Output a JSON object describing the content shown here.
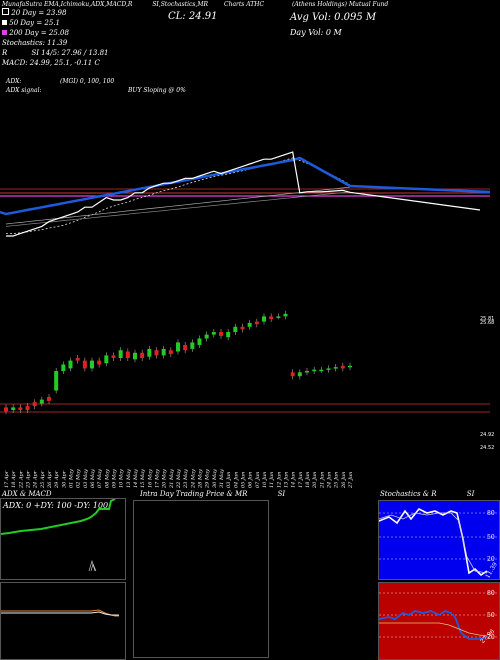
{
  "header": {
    "line1": "MunafaSutra EMA,Ichimoku,ADX,MACD,R",
    "line1b": "SI,Stochastics,MR",
    "line1c": "Charts ATHC",
    "line1d": "(Athens  Holdings) Mutual Fund",
    "ema20": "20 Day = 23.98",
    "ema50": "50 Day = 25.1",
    "ema200": "200 Day = 25.08",
    "stoch": "Stochastics: 11.39",
    "rsi_label": "R",
    "rsi": "SI 14/5: 27.96 / 13.81",
    "macd": "MACD: 24.99, 25.1, -0.11 C",
    "close": "CL: 24.91",
    "avg_vol": "Avg Vol: 0.095  M",
    "day_vol": "Day Vol: 0   M",
    "adx": "ADX:",
    "adx_mid": "(MGI) 0,  100,  100",
    "adx_signal": "ADX  signal:",
    "buy": "BUY Sloping @ 0%"
  },
  "colors": {
    "price_line": "#ffffff",
    "ema_blue": "#1e5bdc",
    "bull": "#22cc22",
    "bear": "#dd2222",
    "red_line": "#ff2020",
    "magenta_line": "#e040e0"
  },
  "price_axis": {
    "labels": [
      "25.81",
      "25.68",
      "24.92",
      "24.52"
    ]
  },
  "xaxis": {
    "dates": [
      "17 Apr",
      "18 Apr",
      "22 Apr",
      "23 Apr",
      "24 Apr",
      "25 Apr",
      "26 Apr",
      "29 Apr",
      "30 Apr",
      "01 May",
      "02 May",
      "03 May",
      "06 May",
      "07 May",
      "08 May",
      "09 May",
      "10 May",
      "13 May",
      "14 May",
      "15 May",
      "16 May",
      "17 May",
      "20 May",
      "21 May",
      "22 May",
      "23 May",
      "24 May",
      "28 May",
      "29 May",
      "30 May",
      "31 May",
      "03 Jun",
      "04 Jun",
      "05 Jun",
      "06 Jun",
      "07 Jun",
      "10 Jun",
      "11 Jun",
      "12 Jun",
      "13 Jun",
      "14 Jun",
      "17 Jun",
      "18 Jun",
      "20 Jun",
      "21 Jun",
      "24 Jun",
      "25 Jun",
      "26 Jun",
      "27 Jun"
    ]
  },
  "panels": {
    "adx_title": "ADX  & MACD",
    "adx_readout": "ADX: 0   +DY: 100  -DY: 100",
    "intraday_title": "Intra  Day Trading Price  & MR",
    "intraday_title_b": "SI",
    "stoch_title": "Stochastics & R",
    "stoch_title_b": "SI",
    "stoch_ticks": [
      "80",
      "50",
      "20"
    ],
    "stoch_value": "11.39",
    "rsi_ticks": [
      "80",
      "50",
      "20"
    ],
    "rsi_value": "27.96"
  },
  "chart_data": {
    "type": "candlestick",
    "upper_price_line": [
      24.0,
      24.0,
      24.05,
      24.1,
      24.15,
      24.2,
      24.3,
      24.35,
      24.4,
      24.45,
      24.5,
      24.6,
      24.6,
      24.7,
      24.8,
      24.75,
      24.75,
      24.8,
      24.9,
      24.9,
      25.0,
      25.05,
      25.1,
      25.1,
      25.15,
      25.2,
      25.2,
      25.25,
      25.3,
      25.35,
      25.3,
      25.35,
      25.4,
      25.45,
      25.5,
      25.55,
      25.6,
      25.6,
      25.65,
      25.7,
      25.75,
      24.9,
      24.92,
      24.92,
      24.92,
      24.93,
      24.94,
      24.95,
      24.91
    ],
    "candles": [
      {
        "o": 24.52,
        "c": 24.49
      },
      {
        "o": 24.5,
        "c": 24.52
      },
      {
        "o": 24.52,
        "c": 24.5
      },
      {
        "o": 24.53,
        "c": 24.5
      },
      {
        "o": 24.56,
        "c": 24.53
      },
      {
        "o": 24.55,
        "c": 24.58
      },
      {
        "o": 24.6,
        "c": 24.57
      },
      {
        "o": 24.65,
        "c": 24.8
      },
      {
        "o": 24.8,
        "c": 24.85
      },
      {
        "o": 24.82,
        "c": 24.88
      },
      {
        "o": 24.9,
        "c": 24.88
      },
      {
        "o": 24.88,
        "c": 24.82
      },
      {
        "o": 24.82,
        "c": 24.88
      },
      {
        "o": 24.88,
        "c": 24.85
      },
      {
        "o": 24.86,
        "c": 24.92
      },
      {
        "o": 24.92,
        "c": 24.9
      },
      {
        "o": 24.9,
        "c": 24.96
      },
      {
        "o": 24.95,
        "c": 24.9
      },
      {
        "o": 24.89,
        "c": 24.94
      },
      {
        "o": 24.94,
        "c": 24.9
      },
      {
        "o": 24.91,
        "c": 24.97
      },
      {
        "o": 24.96,
        "c": 24.92
      },
      {
        "o": 24.92,
        "c": 24.97
      },
      {
        "o": 24.96,
        "c": 24.93
      },
      {
        "o": 24.95,
        "c": 25.02
      },
      {
        "o": 25.0,
        "c": 24.96
      },
      {
        "o": 24.97,
        "c": 25.02
      },
      {
        "o": 25.0,
        "c": 25.05
      },
      {
        "o": 25.05,
        "c": 25.08
      },
      {
        "o": 25.08,
        "c": 25.1
      },
      {
        "o": 25.1,
        "c": 25.07
      },
      {
        "o": 25.06,
        "c": 25.1
      },
      {
        "o": 25.1,
        "c": 25.14
      },
      {
        "o": 25.14,
        "c": 25.12
      },
      {
        "o": 25.14,
        "c": 25.17
      },
      {
        "o": 25.18,
        "c": 25.16
      },
      {
        "o": 25.18,
        "c": 25.22
      },
      {
        "o": 25.22,
        "c": 25.2
      },
      {
        "o": 25.22,
        "c": 25.22
      },
      {
        "o": 25.22,
        "c": 25.24
      },
      {
        "o": 24.79,
        "c": 24.76
      },
      {
        "o": 24.76,
        "c": 24.79
      },
      {
        "o": 24.79,
        "c": 24.8
      },
      {
        "o": 24.8,
        "c": 24.81
      },
      {
        "o": 24.81,
        "c": 24.81
      },
      {
        "o": 24.81,
        "c": 24.82
      },
      {
        "o": 24.82,
        "c": 24.83
      },
      {
        "o": 24.84,
        "c": 24.82
      },
      {
        "o": 24.83,
        "c": 24.84
      }
    ]
  }
}
